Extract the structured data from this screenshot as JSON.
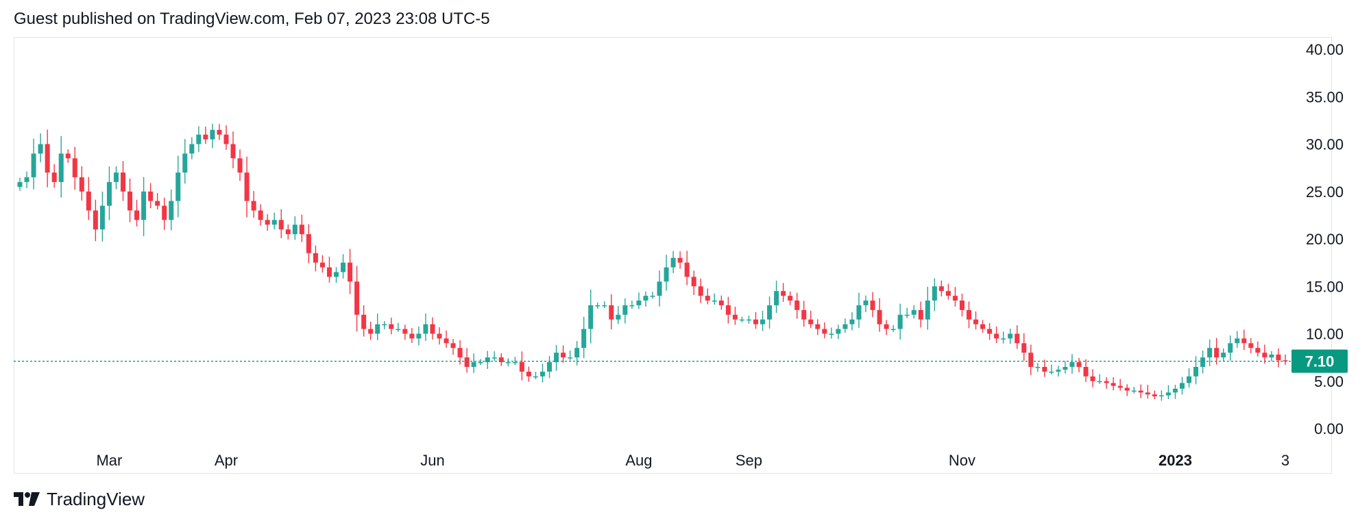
{
  "header": {
    "publisher_line": "Guest published on TradingView.com, Feb 07, 2023 23:08 UTC-5"
  },
  "footer": {
    "brand": "TradingView",
    "logo_icon": "tradingview-logo-icon"
  },
  "colors": {
    "up": "#26a69a",
    "up_dark": "#089981",
    "down": "#f23645",
    "last_price_bg": "#089981",
    "axis_text": "#131722",
    "border": "#e0e3eb"
  },
  "chart_data": {
    "type": "candlestick",
    "y_axis": {
      "ticks": [
        "0.00",
        "5.00",
        "10.00",
        "15.00",
        "20.00",
        "25.00",
        "30.00",
        "35.00",
        "40.00"
      ],
      "range": [
        0,
        40
      ],
      "side": "right"
    },
    "x_axis": {
      "ticks": [
        {
          "label": "Mar",
          "bold": false,
          "index": 13
        },
        {
          "label": "Apr",
          "bold": false,
          "index": 30
        },
        {
          "label": "Jun",
          "bold": false,
          "index": 60
        },
        {
          "label": "Aug",
          "bold": false,
          "index": 90
        },
        {
          "label": "Sep",
          "bold": false,
          "index": 106
        },
        {
          "label": "Nov",
          "bold": false,
          "index": 137
        },
        {
          "label": "2023",
          "bold": true,
          "index": 168
        },
        {
          "label": "3",
          "bold": false,
          "index": 184
        }
      ]
    },
    "last_price": {
      "value": 7.1,
      "label": "7.10"
    },
    "grid": false,
    "ohlc_close_path": [
      26,
      26.5,
      29,
      30,
      27,
      26,
      29,
      28.5,
      26.5,
      25,
      23,
      21,
      23.5,
      26,
      27,
      25,
      23,
      22,
      25,
      24,
      23.5,
      22,
      24,
      27,
      29,
      30,
      31,
      30.5,
      31.5,
      31,
      30,
      28.5,
      27,
      24,
      23,
      22,
      21.5,
      22,
      21,
      20.5,
      21.5,
      20.5,
      18.5,
      17.5,
      17,
      16,
      16.5,
      17.5,
      15.5,
      12,
      10.5,
      10,
      11,
      11,
      10.5,
      10.5,
      10,
      9.5,
      10,
      11,
      10,
      9.5,
      9,
      8.5,
      7.5,
      6.5,
      7,
      7,
      7.5,
      7.5,
      7,
      7,
      7,
      6,
      5.5,
      5.5,
      6,
      7,
      8,
      7.5,
      7.5,
      8.5,
      10.5,
      13,
      13,
      13,
      11.5,
      12,
      13,
      13,
      13.5,
      14,
      14,
      15.5,
      17,
      18,
      17.5,
      16,
      15,
      14,
      13.5,
      13.5,
      13,
      12,
      11.5,
      11.5,
      11.5,
      11,
      11.5,
      13,
      14.5,
      14,
      13.5,
      12.5,
      11.5,
      11,
      10.5,
      10,
      10,
      10.5,
      11,
      11.5,
      13,
      13.5,
      12.5,
      11,
      10.5,
      10.5,
      12,
      12,
      12.5,
      11.5,
      13.5,
      15,
      14.5,
      14,
      13.5,
      12.5,
      11.5,
      11,
      10.5,
      10,
      9.5,
      9.5,
      10,
      9,
      8,
      6.5,
      6.5,
      6,
      6,
      6.2,
      6.5,
      7,
      6.5,
      5.5,
      5,
      5,
      4.8,
      4.5,
      4.3,
      4,
      4,
      3.8,
      3.6,
      3.4,
      3.5,
      3.8,
      4.2,
      4.8,
      5.5,
      6.5,
      7.5,
      8.5,
      7.5,
      8,
      9,
      9.5,
      9,
      8.5,
      8,
      7.5,
      7.8,
      7.2,
      7.1
    ]
  }
}
